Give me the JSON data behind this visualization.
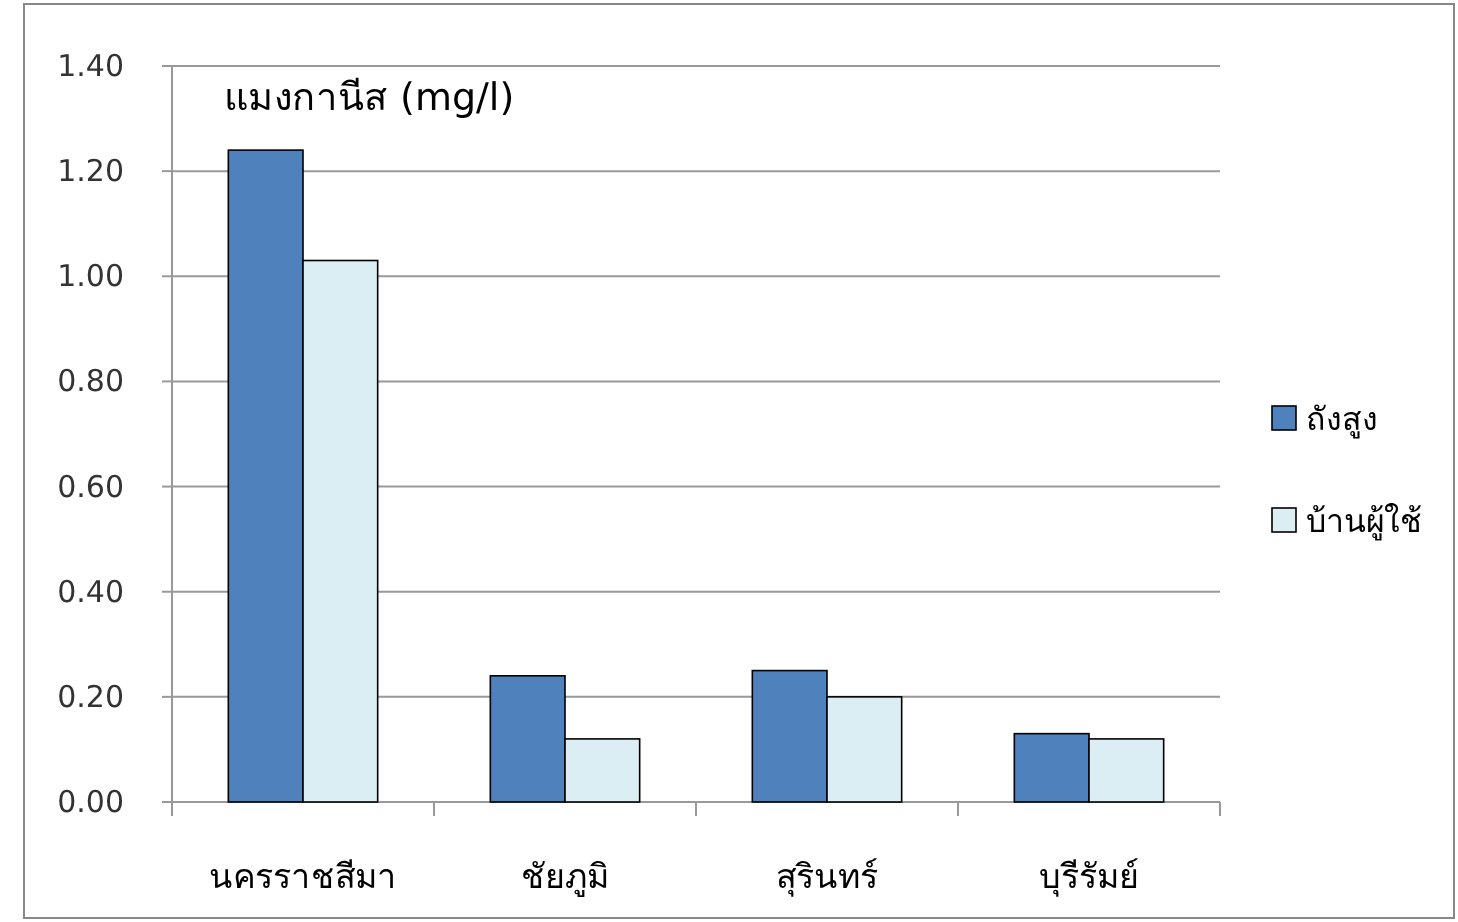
{
  "chart_data": {
    "type": "bar",
    "title": "แมงกานีส (mg/l)",
    "categories": [
      "นครราชสีมา",
      "ชัยภูมิ",
      "สุรินทร์",
      "บุรีรัมย์"
    ],
    "series": [
      {
        "name": "ถังสูง",
        "color": "#4f81bd",
        "values": [
          1.24,
          0.24,
          0.25,
          0.13
        ]
      },
      {
        "name": "บ้านผู้ใช้",
        "color": "#dbeef4",
        "values": [
          1.03,
          0.12,
          0.2,
          0.12
        ]
      }
    ],
    "ylim": [
      0,
      1.4
    ],
    "yticks": [
      {
        "value": 0,
        "label": "0.00"
      },
      {
        "value": 0.2,
        "label": "0.20"
      },
      {
        "value": 0.4,
        "label": "0.40"
      },
      {
        "value": 0.6,
        "label": "0.60"
      },
      {
        "value": 0.8,
        "label": "0.80"
      },
      {
        "value": 1.0,
        "label": "1.00"
      },
      {
        "value": 1.2,
        "label": "1.20"
      },
      {
        "value": 1.4,
        "label": "1.40"
      }
    ],
    "grid": "y",
    "legend": "right"
  }
}
